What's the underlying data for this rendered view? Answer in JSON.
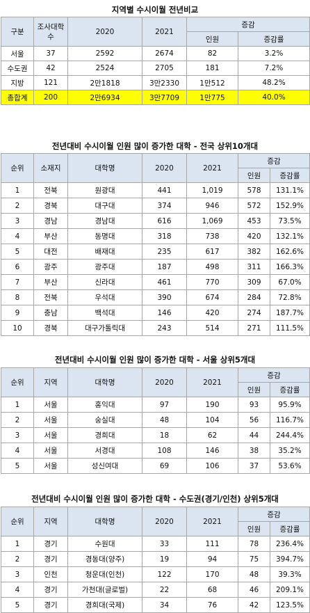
{
  "colors": {
    "header_bg": "#dae5f1",
    "highlight_bg": "#ffff00",
    "border": "#a6a6a6"
  },
  "t1": {
    "title": "지역별 수시이월 전년비교",
    "h_region": "구분",
    "h_count": "조사대학수",
    "h_2020": "2020",
    "h_2021": "2021",
    "h_change": "증감",
    "h_people": "인원",
    "h_rate": "증감률",
    "rows": [
      {
        "region": "서울",
        "count": "37",
        "y2020": "2592",
        "y2021": "2674",
        "people": "82",
        "rate": "3.2%"
      },
      {
        "region": "수도권",
        "count": "42",
        "y2020": "2524",
        "y2021": "2705",
        "people": "181",
        "rate": "7.2%"
      },
      {
        "region": "지방",
        "count": "121",
        "y2020": "2만1818",
        "y2021": "3만2330",
        "people": "1만512",
        "rate": "48.2%"
      },
      {
        "region": "총합계",
        "count": "200",
        "y2020": "2만6934",
        "y2021": "3만7709",
        "people": "1만775",
        "rate": "40.0%"
      }
    ]
  },
  "t2": {
    "title": "전년대비 수시이월 인원 많이 증가한 대학 - 전국 상위10개대",
    "h_rank": "순위",
    "h_loc": "소재지",
    "h_univ": "대학명",
    "h_2020": "2020",
    "h_2021": "2021",
    "h_change": "증감",
    "h_people": "인원",
    "h_rate": "증감률",
    "rows": [
      {
        "rank": "1",
        "loc": "전북",
        "univ": "원광대",
        "y2020": "441",
        "y2021": "1,019",
        "people": "578",
        "rate": "131.1%"
      },
      {
        "rank": "2",
        "loc": "경북",
        "univ": "대구대",
        "y2020": "374",
        "y2021": "946",
        "people": "572",
        "rate": "152.9%"
      },
      {
        "rank": "3",
        "loc": "경남",
        "univ": "경남대",
        "y2020": "616",
        "y2021": "1,069",
        "people": "453",
        "rate": "73.5%"
      },
      {
        "rank": "4",
        "loc": "부산",
        "univ": "동명대",
        "y2020": "318",
        "y2021": "738",
        "people": "420",
        "rate": "132.1%"
      },
      {
        "rank": "5",
        "loc": "대전",
        "univ": "배재대",
        "y2020": "235",
        "y2021": "617",
        "people": "382",
        "rate": "162.6%"
      },
      {
        "rank": "6",
        "loc": "광주",
        "univ": "광주대",
        "y2020": "187",
        "y2021": "498",
        "people": "311",
        "rate": "166.3%"
      },
      {
        "rank": "7",
        "loc": "부산",
        "univ": "신라대",
        "y2020": "461",
        "y2021": "770",
        "people": "309",
        "rate": "67.0%"
      },
      {
        "rank": "8",
        "loc": "전북",
        "univ": "우석대",
        "y2020": "390",
        "y2021": "674",
        "people": "284",
        "rate": "72.8%"
      },
      {
        "rank": "9",
        "loc": "충남",
        "univ": "백석대",
        "y2020": "146",
        "y2021": "420",
        "people": "274",
        "rate": "187.7%"
      },
      {
        "rank": "10",
        "loc": "경북",
        "univ": "대구가톨릭대",
        "y2020": "243",
        "y2021": "514",
        "people": "271",
        "rate": "111.5%"
      }
    ]
  },
  "t3": {
    "title": "전년대비 수시이월 인원 많이 증가한 대학 - 서울 상위5개대",
    "h_rank": "순위",
    "h_loc": "지역",
    "h_univ": "대학명",
    "h_2020": "2020",
    "h_2021": "2021",
    "h_change": "증감",
    "h_people": "인원",
    "h_rate": "증감률",
    "rows": [
      {
        "rank": "1",
        "loc": "서울",
        "univ": "홍익대",
        "y2020": "97",
        "y2021": "190",
        "people": "93",
        "rate": "95.9%"
      },
      {
        "rank": "2",
        "loc": "서울",
        "univ": "숭실대",
        "y2020": "48",
        "y2021": "104",
        "people": "56",
        "rate": "116.7%"
      },
      {
        "rank": "3",
        "loc": "서울",
        "univ": "경희대",
        "y2020": "18",
        "y2021": "62",
        "people": "44",
        "rate": "244.4%"
      },
      {
        "rank": "4",
        "loc": "서울",
        "univ": "서경대",
        "y2020": "108",
        "y2021": "146",
        "people": "38",
        "rate": "35.2%"
      },
      {
        "rank": "5",
        "loc": "서울",
        "univ": "성신여대",
        "y2020": "69",
        "y2021": "106",
        "people": "37",
        "rate": "53.6%"
      }
    ]
  },
  "t4": {
    "title": "전년대비 수시이월 인원 많이 증가한 대학 - 수도권(경기/인천) 상위5개대",
    "h_rank": "순위",
    "h_loc": "지역",
    "h_univ": "대학명",
    "h_2020": "2020",
    "h_2021": "2021",
    "h_change": "증감",
    "h_people": "인원",
    "h_rate": "증감률",
    "rows": [
      {
        "rank": "1",
        "loc": "경기",
        "univ": "수원대",
        "y2020": "33",
        "y2021": "111",
        "people": "78",
        "rate": "236.4%"
      },
      {
        "rank": "2",
        "loc": "경기",
        "univ": "경동대(양주)",
        "y2020": "19",
        "y2021": "94",
        "people": "75",
        "rate": "394.7%"
      },
      {
        "rank": "3",
        "loc": "인천",
        "univ": "청운대(인천)",
        "y2020": "122",
        "y2021": "170",
        "people": "48",
        "rate": "39.3%"
      },
      {
        "rank": "4",
        "loc": "경기",
        "univ": "가천대(글로벌)",
        "y2020": "22",
        "y2021": "68",
        "people": "46",
        "rate": "209.1%"
      },
      {
        "rank": "5",
        "loc": "경기",
        "univ": "경희대(국제)",
        "y2020": "34",
        "y2021": "76",
        "people": "42",
        "rate": "123.5%"
      }
    ]
  }
}
